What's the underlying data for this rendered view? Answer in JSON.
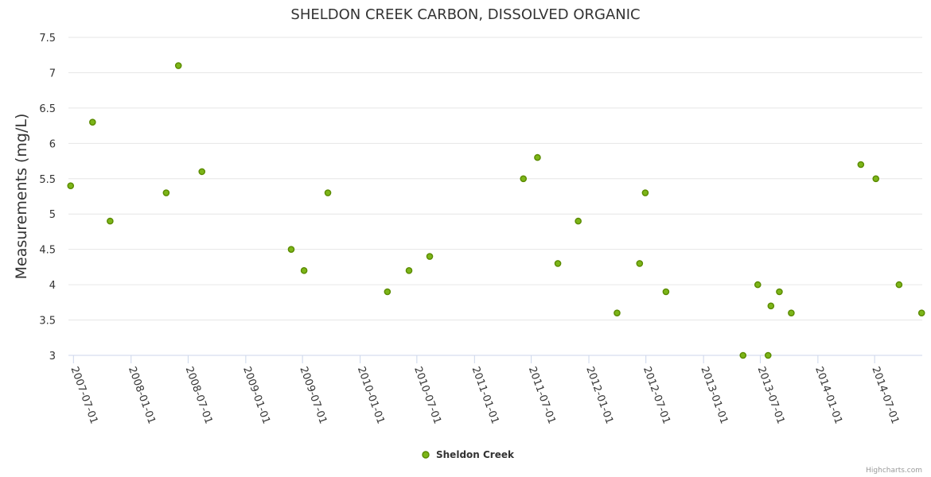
{
  "chart_data": {
    "type": "scatter",
    "title": "SHELDON CREEK CARBON, DISSOLVED ORGANIC",
    "xlabel": "",
    "ylabel": "Measurements (mg/L)",
    "ylim": [
      3,
      7.5
    ],
    "yticks": [
      "3",
      "3.5",
      "4",
      "4.5",
      "5",
      "5.5",
      "6",
      "6.5",
      "7",
      "7.5"
    ],
    "xlim": [
      "2007-06-15",
      "2014-11-30"
    ],
    "xticks": [
      "2007-07-01",
      "2008-01-01",
      "2008-07-01",
      "2009-01-01",
      "2009-07-01",
      "2010-01-01",
      "2010-07-01",
      "2011-01-01",
      "2011-07-01",
      "2012-01-01",
      "2012-07-01",
      "2013-01-01",
      "2013-07-01",
      "2014-01-01",
      "2014-07-01"
    ],
    "grid": true,
    "legend": "bottom-center",
    "color": "#7cb518",
    "marker_stroke": "#5a8a00",
    "series": [
      {
        "name": "Sheldon Creek",
        "points": [
          {
            "x": "2007-06-22",
            "y": 5.4
          },
          {
            "x": "2007-08-31",
            "y": 6.3
          },
          {
            "x": "2007-10-26",
            "y": 4.9
          },
          {
            "x": "2008-04-22",
            "y": 5.3
          },
          {
            "x": "2008-05-31",
            "y": 7.1
          },
          {
            "x": "2008-08-14",
            "y": 5.6
          },
          {
            "x": "2009-05-26",
            "y": 4.5
          },
          {
            "x": "2009-07-06",
            "y": 4.2
          },
          {
            "x": "2009-09-20",
            "y": 5.3
          },
          {
            "x": "2010-03-29",
            "y": 3.9
          },
          {
            "x": "2010-06-06",
            "y": 4.2
          },
          {
            "x": "2010-08-11",
            "y": 4.4
          },
          {
            "x": "2011-06-06",
            "y": 5.5
          },
          {
            "x": "2011-07-21",
            "y": 5.8
          },
          {
            "x": "2011-09-24",
            "y": 4.3
          },
          {
            "x": "2011-11-28",
            "y": 4.9
          },
          {
            "x": "2012-03-31",
            "y": 3.6
          },
          {
            "x": "2012-06-11",
            "y": 4.3
          },
          {
            "x": "2012-06-29",
            "y": 5.3
          },
          {
            "x": "2012-09-03",
            "y": 3.9
          },
          {
            "x": "2013-05-07",
            "y": 3.0
          },
          {
            "x": "2013-06-23",
            "y": 4.0
          },
          {
            "x": "2013-07-26",
            "y": 3.0
          },
          {
            "x": "2013-08-04",
            "y": 3.7
          },
          {
            "x": "2013-08-31",
            "y": 3.9
          },
          {
            "x": "2013-10-08",
            "y": 3.6
          },
          {
            "x": "2014-05-18",
            "y": 5.7
          },
          {
            "x": "2014-07-05",
            "y": 5.5
          },
          {
            "x": "2014-09-17",
            "y": 4.0
          },
          {
            "x": "2014-11-28",
            "y": 3.6
          }
        ]
      }
    ]
  },
  "credits": "Highcharts.com"
}
